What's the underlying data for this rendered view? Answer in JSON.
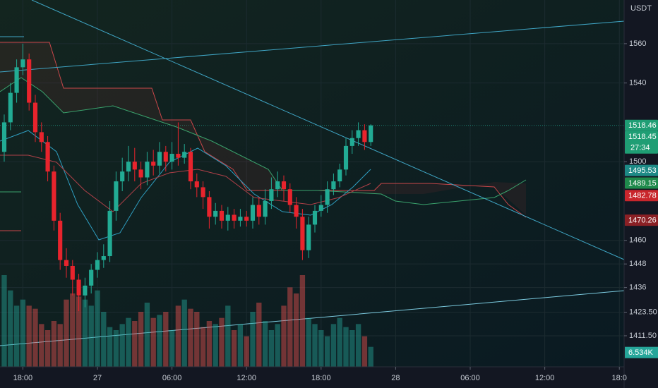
{
  "chart_data": {
    "type": "candlestick",
    "currency": "USDT",
    "xlim": [
      -0.68,
      99.77
    ],
    "xticks": [
      {
        "value": 3,
        "label": "18:00"
      },
      {
        "value": 15,
        "label": "27"
      },
      {
        "value": 27,
        "label": "06:00"
      },
      {
        "value": 39,
        "label": "12:00"
      },
      {
        "value": 51,
        "label": "18:00"
      },
      {
        "value": 63,
        "label": "28"
      },
      {
        "value": 75,
        "label": "06:00"
      },
      {
        "value": 87,
        "label": "12:00"
      },
      {
        "value": 99,
        "label": "18:0"
      }
    ],
    "ylim": [
      1395.7,
      1582.2
    ],
    "yticks": [
      1560,
      1540,
      1500,
      1460,
      1448,
      1436,
      {
        "value": 1423.5,
        "label": "1423.50"
      },
      {
        "value": 1411.5,
        "label": "1411.50"
      }
    ],
    "up_color": "#22ab94",
    "down_color": "#e8242d",
    "open": [
      1505,
      1520,
      1535,
      1548,
      1552,
      1530,
      1515,
      1510,
      1495,
      1470,
      1450,
      1447,
      1440,
      1432,
      1437,
      1445,
      1450,
      1452,
      1475,
      1490,
      1495,
      1500,
      1496,
      1492,
      1500,
      1498,
      1505,
      1500,
      1504,
      1502,
      1505,
      1490,
      1487,
      1482,
      1472,
      1475,
      1470,
      1473,
      1470,
      1472,
      1470,
      1478,
      1472,
      1480,
      1486,
      1490,
      1486,
      1478,
      1472,
      1455,
      1468,
      1475,
      1478,
      1486,
      1490,
      1496,
      1508,
      1512,
      1516,
      1510
    ],
    "high": [
      1524,
      1540,
      1552,
      1560,
      1555,
      1534,
      1520,
      1513,
      1498,
      1474,
      1456,
      1450,
      1443,
      1441,
      1448,
      1454,
      1458,
      1480,
      1495,
      1502,
      1508,
      1507,
      1500,
      1505,
      1506,
      1510,
      1508,
      1510,
      1520,
      1509,
      1507,
      1494,
      1490,
      1485,
      1479,
      1478,
      1477,
      1476,
      1476,
      1475,
      1482,
      1482,
      1486,
      1492,
      1495,
      1493,
      1489,
      1482,
      1476,
      1472,
      1478,
      1483,
      1490,
      1494,
      1499,
      1512,
      1516,
      1520,
      1519,
      1519
    ],
    "low": [
      1500,
      1516,
      1530,
      1544,
      1526,
      1510,
      1505,
      1490,
      1465,
      1445,
      1441,
      1432,
      1424,
      1426,
      1433,
      1441,
      1446,
      1449,
      1470,
      1485,
      1490,
      1490,
      1486,
      1488,
      1493,
      1494,
      1495,
      1496,
      1498,
      1499,
      1486,
      1482,
      1476,
      1466,
      1468,
      1466,
      1465,
      1466,
      1467,
      1467,
      1466,
      1468,
      1468,
      1476,
      1482,
      1480,
      1474,
      1466,
      1450,
      1451,
      1464,
      1472,
      1474,
      1483,
      1487,
      1493,
      1504,
      1508,
      1506,
      1508
    ],
    "close": [
      1520,
      1535,
      1548,
      1552,
      1530,
      1515,
      1510,
      1495,
      1470,
      1450,
      1447,
      1440,
      1432,
      1437,
      1445,
      1450,
      1452,
      1475,
      1490,
      1495,
      1500,
      1496,
      1492,
      1500,
      1498,
      1505,
      1500,
      1504,
      1502,
      1505,
      1490,
      1487,
      1482,
      1472,
      1475,
      1470,
      1473,
      1470,
      1472,
      1470,
      1478,
      1472,
      1480,
      1486,
      1490,
      1486,
      1478,
      1472,
      1455,
      1468,
      1475,
      1478,
      1486,
      1490,
      1496,
      1508,
      1512,
      1516,
      1510,
      1518.45
    ],
    "volume": [
      30,
      25,
      20,
      22,
      20,
      19,
      14,
      12,
      15,
      14,
      22,
      24,
      23,
      22,
      20,
      25,
      18,
      13,
      12,
      14,
      16,
      15,
      18,
      21,
      16,
      17,
      18,
      12,
      20,
      22,
      19,
      18,
      13,
      15,
      14,
      16,
      20,
      12,
      14,
      10,
      18,
      21,
      15,
      12,
      14,
      20,
      26,
      24,
      30,
      16,
      14,
      12,
      10,
      14,
      16,
      13,
      12,
      14,
      10,
      6.534
    ],
    "vlim": [
      0,
      30
    ],
    "volume_label": {
      "value": 6.534,
      "label": "6.534K",
      "color": "#26a69a"
    },
    "countdown": "27:34",
    "price_labels": [
      {
        "value": 1518.46,
        "color": "#1f9e74"
      },
      {
        "value": 1518.45,
        "color": "#1f9e74"
      },
      {
        "value": 1495.53,
        "color": "#1d8a86"
      },
      {
        "value": 1489.15,
        "color": "#1f8a4c"
      },
      {
        "value": 1482.78,
        "color": "#c9262c"
      },
      {
        "value": 1470.26,
        "color": "#8a2025"
      }
    ]
  }
}
